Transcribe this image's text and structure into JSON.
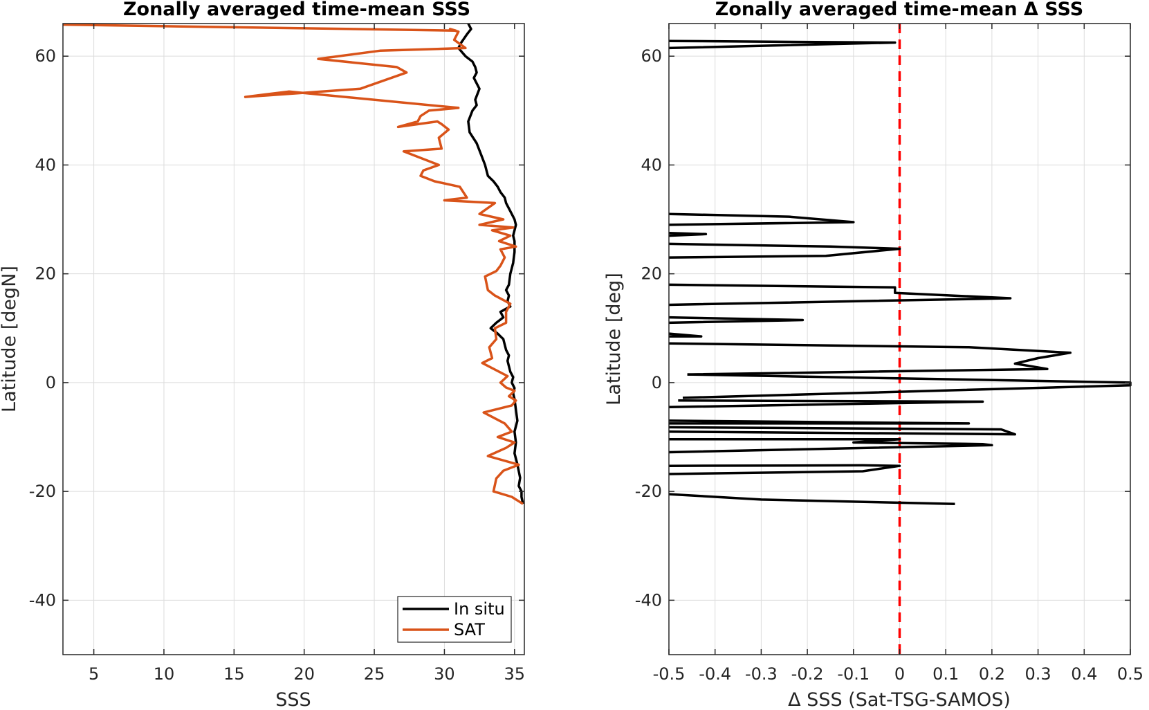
{
  "chart_data": [
    {
      "type": "line",
      "title": "Zonally averaged time-mean SSS",
      "xlabel": "SSS",
      "ylabel": "Latitude [degN]",
      "xlim": [
        2.8,
        35.7
      ],
      "ylim": [
        -50,
        66
      ],
      "xticks": [
        5,
        10,
        15,
        20,
        25,
        30,
        35
      ],
      "yticks": [
        -40,
        -20,
        0,
        20,
        40,
        60
      ],
      "grid": true,
      "legend": "bottom-right",
      "series": [
        {
          "name": "In situ",
          "color": "#000000",
          "x": [
            35.6,
            35.5,
            35.5,
            35.3,
            35.4,
            35.2,
            35.0,
            35.1,
            35.0,
            35.2,
            35.1,
            35.0,
            34.9,
            35.0,
            34.8,
            34.9,
            34.7,
            34.6,
            34.5,
            34.6,
            34.4,
            34.3,
            34.2,
            34.0,
            33.8,
            33.3,
            33.7,
            34.2,
            34.0,
            34.7,
            34.5,
            34.6,
            34.4,
            34.6,
            34.7,
            34.8,
            34.9,
            35.0,
            35.0,
            34.9,
            35.0,
            35.1,
            35.0,
            34.8,
            34.4,
            34.3,
            34.0,
            33.8,
            33.5,
            33.1,
            32.9,
            32.6,
            32.3,
            31.8,
            31.7,
            32.0,
            32.3,
            32.2,
            32.5,
            32.1,
            32.3,
            32.2,
            32.0,
            31.5,
            31.0,
            31.2,
            31.6,
            31.9,
            31.7
          ],
          "y": [
            -22.3,
            -21.0,
            -20.0,
            -19.0,
            -17.5,
            -15.0,
            -13.0,
            -11.0,
            -9.0,
            -7.0,
            -5.0,
            -3.0,
            -2.0,
            -1.0,
            0.0,
            1.0,
            2.0,
            3.0,
            4.0,
            5.0,
            6.0,
            7.0,
            8.0,
            8.5,
            9.0,
            10.0,
            11.0,
            12.0,
            13.0,
            14.0,
            15.0,
            16.0,
            17.0,
            18.0,
            20.0,
            21.0,
            22.0,
            24.0,
            26.0,
            27.0,
            28.0,
            29.0,
            30.0,
            31.0,
            33.0,
            34.0,
            35.0,
            36.0,
            37.0,
            38.0,
            40.0,
            42.0,
            44.0,
            46.0,
            48.0,
            50.0,
            51.0,
            52.0,
            54.0,
            56.0,
            57.0,
            58.0,
            59.0,
            60.0,
            61.5,
            62.5,
            64.0,
            65.0,
            66.0
          ]
        },
        {
          "name": "SAT",
          "color": "#D95319",
          "x": [
            35.6,
            34.8,
            33.5,
            33.7,
            34.2,
            35.3,
            33.1,
            34.4,
            35.0,
            33.8,
            34.8,
            34.3,
            32.8,
            34.8,
            35.1,
            34.6,
            35.0,
            34.4,
            34.0,
            34.5,
            32.7,
            33.4,
            33.2,
            33.7,
            33.6,
            34.4,
            34.4,
            34.7,
            33.6,
            33.1,
            32.9,
            33.7,
            34.0,
            34.3,
            34.0,
            35.1,
            33.9,
            34.7,
            33.4,
            34.9,
            32.5,
            34.2,
            32.5,
            33.6,
            30.0,
            31.6,
            31.1,
            29.3,
            28.3,
            28.5,
            29.6,
            27.1,
            29.8,
            29.6,
            30.3,
            29.8,
            29.5,
            26.7,
            28.1,
            28.3,
            28.9,
            31.0,
            18.9,
            15.8,
            24.0,
            27.3,
            26.6,
            21.0,
            25.4,
            31.5,
            30.7,
            31.0,
            30.4,
            30.8,
            2.8
          ],
          "y": [
            -22.3,
            -21.0,
            -20.0,
            -17.6,
            -16.2,
            -15.1,
            -13.5,
            -12.0,
            -11.0,
            -10.0,
            -9.0,
            -7.5,
            -5.5,
            -4.2,
            -3.3,
            -2.5,
            -1.5,
            -0.9,
            0.0,
            1.2,
            3.6,
            4.5,
            6.5,
            8.0,
            10.0,
            11.0,
            13.0,
            14.5,
            16.0,
            17.0,
            19.5,
            20.5,
            21.5,
            23.0,
            24.5,
            25.0,
            26.0,
            27.0,
            28.0,
            28.5,
            29.0,
            30.0,
            31.0,
            33.0,
            33.5,
            34.0,
            36.0,
            37.0,
            38.0,
            39.0,
            40.0,
            42.5,
            43.0,
            45.0,
            46.5,
            47.5,
            48.0,
            47.0,
            48.0,
            49.0,
            50.0,
            50.5,
            53.5,
            52.5,
            54.0,
            57.0,
            58.0,
            59.5,
            61.0,
            61.5,
            63.0,
            64.5,
            65.0,
            64.7,
            65.8
          ]
        }
      ],
      "legend_entries": [
        "In situ",
        "SAT"
      ]
    },
    {
      "type": "line",
      "title": "Zonally averaged time-mean Δ SSS",
      "xlabel": "Δ SSS (Sat-TSG-SAMOS)",
      "ylabel": "Latitude [deg]",
      "xlim": [
        -0.5,
        0.5
      ],
      "ylim": [
        -50,
        66
      ],
      "xticks": [
        -0.5,
        -0.4,
        -0.3,
        -0.2,
        -0.1,
        0,
        0.1,
        0.2,
        0.3,
        0.4,
        0.5
      ],
      "xtick_labels": [
        "-0.5",
        "-0.4",
        "-0.3",
        "-0.2",
        "-0.1",
        "0",
        "0.1",
        "0.2",
        "0.3",
        "0.4",
        "0.5"
      ],
      "yticks": [
        -40,
        -20,
        0,
        20,
        40,
        60
      ],
      "grid": true,
      "reference_line": {
        "x": 0,
        "color": "#FF0000",
        "style": "dashed"
      },
      "series": [
        {
          "color": "#000000",
          "x": [
            0.12,
            -0.3,
            -0.5,
            null,
            -0.5,
            -0.08,
            0.0,
            -0.08,
            -0.5,
            null,
            -0.5,
            0.2,
            0.18,
            -0.1,
            0.0,
            -0.5,
            null,
            -0.5,
            0.25,
            0.22,
            -0.5,
            null,
            -0.5,
            0.15,
            -0.5,
            null,
            -0.5,
            0.18,
            -0.48,
            null,
            -0.47,
            0.5,
            0.5,
            -0.46,
            null,
            -0.46,
            0.32,
            0.25,
            0.3,
            0.37,
            0.15,
            -0.5,
            null,
            -0.5,
            -0.43,
            -0.5,
            null,
            -0.5,
            -0.21,
            -0.5,
            null,
            -0.5,
            0.24,
            -0.01,
            -0.01,
            -0.5,
            null,
            -0.5,
            -0.16,
            0.0,
            -0.15,
            -0.5,
            null,
            -0.5,
            -0.42,
            -0.5,
            null,
            -0.5,
            -0.1,
            -0.24,
            -0.5,
            null,
            -0.5,
            -0.01,
            -0.5
          ],
          "y": [
            -22.3,
            -21.5,
            -20.5,
            null,
            -16.8,
            -16.3,
            -15.3,
            -15.2,
            -15.3,
            null,
            -12.8,
            -11.5,
            -11.3,
            -11.0,
            -10.4,
            -10.4,
            null,
            -9.0,
            -9.5,
            -8.6,
            -8.2,
            null,
            -7.5,
            -7.5,
            -7.0,
            null,
            -4.5,
            -3.5,
            -3.3,
            null,
            -2.8,
            -0.5,
            0.0,
            1.5,
            null,
            1.5,
            2.5,
            3.5,
            4.5,
            5.5,
            6.5,
            7.2,
            null,
            8.5,
            8.5,
            9.0,
            null,
            11.0,
            11.5,
            12.0,
            null,
            14.3,
            15.5,
            16.5,
            17.5,
            18.0,
            null,
            23.0,
            23.3,
            24.6,
            25.0,
            25.5,
            null,
            27.0,
            27.3,
            27.5,
            null,
            29.0,
            29.5,
            30.5,
            31.0,
            null,
            61.5,
            62.5,
            62.8
          ]
        }
      ]
    }
  ],
  "colors": {
    "in_situ": "#000000",
    "sat": "#D95319",
    "zero_line": "#FF0000",
    "grid": "#dcdcdc",
    "axes": "#262626"
  }
}
